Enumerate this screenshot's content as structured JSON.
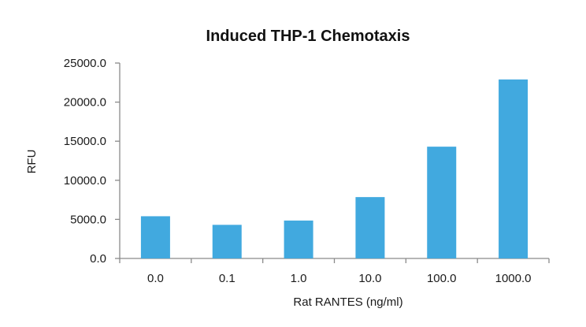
{
  "chart_data": {
    "type": "bar",
    "title": "Induced THP-1 Chemotaxis",
    "xlabel": "Rat RANTES (ng/ml)",
    "ylabel": "RFU",
    "categories": [
      "0.0",
      "0.1",
      "1.0",
      "10.0",
      "100.0",
      "1000.0"
    ],
    "values": [
      5400,
      4300,
      4850,
      7850,
      14300,
      22900
    ],
    "ylim": [
      0,
      25000
    ],
    "yticks": [
      "0.0",
      "5000.0",
      "10000.0",
      "15000.0",
      "20000.0",
      "25000.0"
    ],
    "grid": false,
    "bar_color": "#41a9df"
  }
}
